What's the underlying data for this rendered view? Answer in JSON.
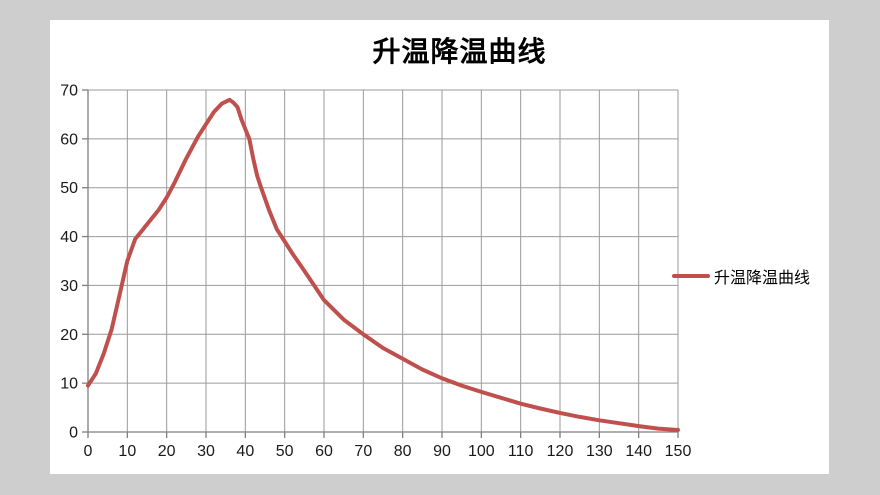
{
  "window": {
    "background_color": "#cecece"
  },
  "chart": {
    "title": "升温降温曲线",
    "legend": {
      "label": "升温降温曲线"
    },
    "colors": {
      "series": "#C0504D",
      "grid": "#9a9a9a",
      "axis": "#7f7f7f",
      "tick": "#7f7f7f",
      "chart_background": "#ffffff",
      "page_background": "#cecece",
      "label_text": "#1a1a1a"
    }
  },
  "chart_data": {
    "type": "line",
    "title": "升温降温曲线",
    "xlabel": "",
    "ylabel": "",
    "xlim": [
      0,
      150
    ],
    "ylim": [
      0,
      70
    ],
    "x_ticks": [
      0,
      10,
      20,
      30,
      40,
      50,
      60,
      70,
      80,
      90,
      100,
      110,
      120,
      130,
      140,
      150
    ],
    "y_ticks": [
      0,
      10,
      20,
      30,
      40,
      50,
      60,
      70
    ],
    "grid": true,
    "legend_position": "right",
    "series": [
      {
        "name": "升温降温曲线",
        "color": "#C0504D",
        "points": [
          [
            0,
            9.5
          ],
          [
            2,
            12
          ],
          [
            4,
            16
          ],
          [
            6,
            21
          ],
          [
            8,
            28
          ],
          [
            10,
            35
          ],
          [
            12,
            39.5
          ],
          [
            14,
            41.5
          ],
          [
            16,
            43.5
          ],
          [
            18,
            45.5
          ],
          [
            20,
            48
          ],
          [
            22,
            51
          ],
          [
            25,
            56
          ],
          [
            28,
            60.5
          ],
          [
            30,
            63
          ],
          [
            32,
            65.5
          ],
          [
            34,
            67.2
          ],
          [
            36,
            68
          ],
          [
            37,
            67.4
          ],
          [
            38,
            66.5
          ],
          [
            39,
            64
          ],
          [
            40,
            62
          ],
          [
            41,
            60
          ],
          [
            42,
            56
          ],
          [
            43,
            52.5
          ],
          [
            44,
            50
          ],
          [
            46,
            45.5
          ],
          [
            48,
            41.5
          ],
          [
            50,
            39
          ],
          [
            52,
            36.5
          ],
          [
            55,
            33
          ],
          [
            60,
            27
          ],
          [
            65,
            23
          ],
          [
            70,
            20
          ],
          [
            75,
            17.2
          ],
          [
            80,
            15
          ],
          [
            85,
            12.8
          ],
          [
            90,
            11
          ],
          [
            95,
            9.5
          ],
          [
            100,
            8.2
          ],
          [
            105,
            7
          ],
          [
            110,
            5.8
          ],
          [
            115,
            4.8
          ],
          [
            120,
            3.9
          ],
          [
            125,
            3.1
          ],
          [
            130,
            2.4
          ],
          [
            135,
            1.8
          ],
          [
            140,
            1.2
          ],
          [
            145,
            0.7
          ],
          [
            150,
            0.4
          ]
        ]
      }
    ]
  }
}
